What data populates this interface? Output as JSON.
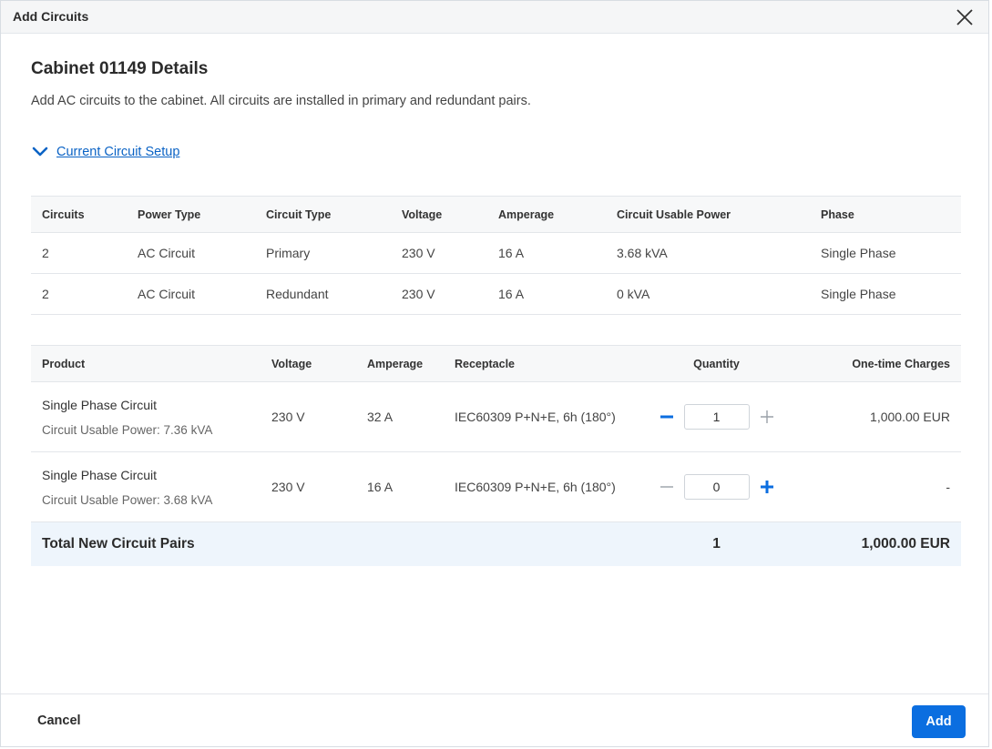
{
  "dialog": {
    "title": "Add Circuits"
  },
  "page": {
    "title": "Cabinet 01149 Details",
    "description": "Add AC circuits to the cabinet. All circuits are installed in primary and redundant pairs."
  },
  "accordion": {
    "label": "Current Circuit Setup",
    "expanded": true
  },
  "current_setup": {
    "headers": [
      "Circuits",
      "Power Type",
      "Circuit Type",
      "Voltage",
      "Amperage",
      "Circuit Usable Power",
      "Phase"
    ],
    "rows": [
      [
        "2",
        "AC Circuit",
        "Primary",
        "230 V",
        "16 A",
        "3.68 kVA",
        "Single Phase"
      ],
      [
        "2",
        "AC Circuit",
        "Redundant",
        "230 V",
        "16 A",
        "0 kVA",
        "Single Phase"
      ]
    ]
  },
  "products": {
    "headers": [
      "Product",
      "Voltage",
      "Amperage",
      "Receptacle",
      "Quantity",
      "One-time Charges"
    ],
    "rows": [
      {
        "name": "Single Phase Circuit",
        "sub": "Circuit Usable Power: 7.36 kVA",
        "voltage": "230 V",
        "amperage": "32 A",
        "receptacle": "IEC60309 P+N+E, 6h (180°)",
        "quantity": "1",
        "charges": "1,000.00 EUR"
      },
      {
        "name": "Single Phase Circuit",
        "sub": "Circuit Usable Power: 3.68 kVA",
        "voltage": "230 V",
        "amperage": "16 A",
        "receptacle": "IEC60309 P+N+E, 6h (180°)",
        "quantity": "0",
        "charges": "-"
      }
    ],
    "total": {
      "label": "Total New Circuit Pairs",
      "quantity": "1",
      "charges": "1,000.00 EUR"
    }
  },
  "footer": {
    "cancel_label": "Cancel",
    "add_label": "Add"
  },
  "colors": {
    "accent": "#0b6ee0",
    "link": "#0b63c5",
    "total_bg": "#eef5fc",
    "disabled": "#9aa1a8"
  },
  "icons": [
    "close-icon",
    "chevron-down-icon",
    "minus-icon",
    "plus-icon"
  ]
}
